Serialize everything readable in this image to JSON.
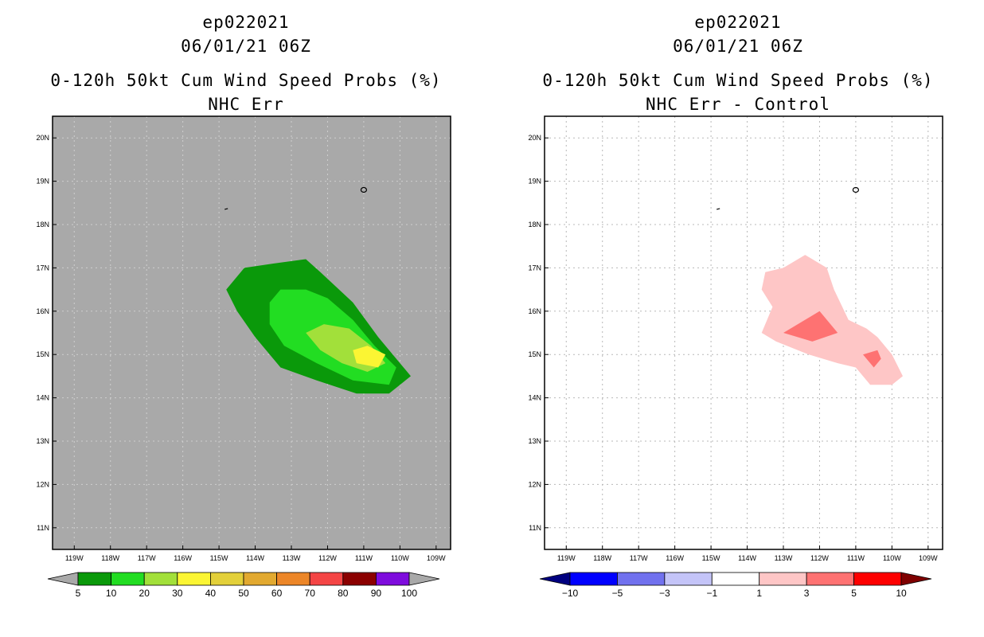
{
  "panels": [
    {
      "title1": "ep022021",
      "title2": "06/01/21 06Z",
      "title3": "0-120h 50kt Cum Wind Speed Probs (%)",
      "title4": "NHC Err"
    },
    {
      "title1": "ep022021",
      "title2": "06/01/21 06Z",
      "title3": "0-120h 50kt Cum Wind Speed Probs (%)",
      "title4": "NHC Err - Control"
    }
  ],
  "colors": {
    "map_background_left": "#a9a9a9",
    "map_background_right": "#ffffff",
    "prob_bins": [
      "#0a990a",
      "#22dd22",
      "#a2e03a",
      "#fbf533",
      "#e3d03a",
      "#e2a930",
      "#ec8628",
      "#f44545",
      "#8b0000",
      "#7e0cdd"
    ],
    "diff_bins": [
      "#000080",
      "#0000ff",
      "#7171ee",
      "#c4c4f8",
      "#ffffff",
      "#fec6c6",
      "#fe7272",
      "#fd0000",
      "#7f0000"
    ]
  },
  "chart_data": [
    {
      "type": "contour-map",
      "title": "0-120h 50kt Cum Wind Speed Probs (%) — NHC Err",
      "lon_range": [
        -119.6,
        -108.6
      ],
      "lat_range": [
        10.5,
        20.5
      ],
      "x_ticks": [
        "119W",
        "118W",
        "117W",
        "116W",
        "115W",
        "114W",
        "113W",
        "112W",
        "111W",
        "110W",
        "109W"
      ],
      "x_tick_values": [
        -119,
        -118,
        -117,
        -116,
        -115,
        -114,
        -113,
        -112,
        -111,
        -110,
        -109
      ],
      "y_ticks": [
        "20N",
        "19N",
        "18N",
        "17N",
        "16N",
        "15N",
        "14N",
        "13N",
        "12N",
        "11N"
      ],
      "y_tick_values": [
        20,
        19,
        18,
        17,
        16,
        15,
        14,
        13,
        12,
        11
      ],
      "colorbar_labels": [
        "5",
        "10",
        "20",
        "30",
        "40",
        "50",
        "60",
        "70",
        "80",
        "90",
        "100"
      ],
      "contours": [
        {
          "level": "5-10",
          "bin": 0,
          "points": [
            [
              -114.8,
              16.5
            ],
            [
              -114.3,
              17.0
            ],
            [
              -113.5,
              17.1
            ],
            [
              -112.6,
              17.2
            ],
            [
              -112.2,
              16.9
            ],
            [
              -111.3,
              16.2
            ],
            [
              -110.6,
              15.4
            ],
            [
              -110.0,
              14.8
            ],
            [
              -109.7,
              14.5
            ],
            [
              -110.3,
              14.1
            ],
            [
              -111.2,
              14.1
            ],
            [
              -112.3,
              14.4
            ],
            [
              -113.3,
              14.7
            ],
            [
              -114.0,
              15.4
            ],
            [
              -114.5,
              16.0
            ]
          ]
        },
        {
          "level": "10-20",
          "bin": 1,
          "points": [
            [
              -113.6,
              16.2
            ],
            [
              -113.3,
              16.5
            ],
            [
              -112.6,
              16.5
            ],
            [
              -112.0,
              16.3
            ],
            [
              -111.3,
              15.8
            ],
            [
              -110.7,
              15.2
            ],
            [
              -110.1,
              14.7
            ],
            [
              -110.3,
              14.3
            ],
            [
              -111.3,
              14.4
            ],
            [
              -112.3,
              14.8
            ],
            [
              -113.2,
              15.2
            ],
            [
              -113.6,
              15.7
            ]
          ]
        },
        {
          "level": "20-30",
          "bin": 2,
          "points": [
            [
              -112.6,
              15.5
            ],
            [
              -112.1,
              15.7
            ],
            [
              -111.4,
              15.6
            ],
            [
              -110.8,
              15.2
            ],
            [
              -110.4,
              14.8
            ],
            [
              -110.9,
              14.6
            ],
            [
              -111.6,
              14.8
            ],
            [
              -112.2,
              15.1
            ]
          ]
        },
        {
          "level": "30-40",
          "bin": 3,
          "points": [
            [
              -111.3,
              15.1
            ],
            [
              -110.9,
              15.2
            ],
            [
              -110.4,
              15.0
            ],
            [
              -110.6,
              14.7
            ],
            [
              -111.2,
              14.8
            ]
          ]
        }
      ],
      "islands": [
        [
          -111.0,
          18.8
        ],
        [
          -114.8,
          18.35
        ]
      ]
    },
    {
      "type": "contour-map",
      "title": "0-120h 50kt Cum Wind Speed Probs (%) — NHC Err - Control",
      "lon_range": [
        -119.6,
        -108.6
      ],
      "lat_range": [
        10.5,
        20.5
      ],
      "x_ticks": [
        "119W",
        "118W",
        "117W",
        "116W",
        "115W",
        "114W",
        "113W",
        "112W",
        "111W",
        "110W",
        "109W"
      ],
      "x_tick_values": [
        -119,
        -118,
        -117,
        -116,
        -115,
        -114,
        -113,
        -112,
        -111,
        -110,
        -109
      ],
      "y_ticks": [
        "20N",
        "19N",
        "18N",
        "17N",
        "16N",
        "15N",
        "14N",
        "13N",
        "12N",
        "11N"
      ],
      "y_tick_values": [
        20,
        19,
        18,
        17,
        16,
        15,
        14,
        13,
        12,
        11
      ],
      "grid": true,
      "colorbar_labels": [
        "-10",
        "-5",
        "-3",
        "-1",
        "1",
        "3",
        "5",
        "10"
      ],
      "contours": [
        {
          "level": "1-3",
          "bin": 5,
          "points": [
            [
              -113.5,
              16.9
            ],
            [
              -113.0,
              17.0
            ],
            [
              -112.4,
              17.3
            ],
            [
              -111.8,
              17.0
            ],
            [
              -111.6,
              16.5
            ],
            [
              -111.2,
              15.8
            ],
            [
              -110.7,
              15.6
            ],
            [
              -110.4,
              15.4
            ],
            [
              -110.0,
              15.0
            ],
            [
              -109.7,
              14.5
            ],
            [
              -110.0,
              14.3
            ],
            [
              -110.6,
              14.3
            ],
            [
              -111.0,
              14.7
            ],
            [
              -111.5,
              14.8
            ],
            [
              -112.3,
              15.0
            ],
            [
              -113.2,
              15.3
            ],
            [
              -113.6,
              15.5
            ],
            [
              -113.3,
              16.1
            ],
            [
              -113.6,
              16.5
            ]
          ]
        },
        {
          "level": "3-5",
          "bin": 6,
          "points": [
            [
              -113.0,
              15.5
            ],
            [
              -112.0,
              16.0
            ],
            [
              -111.5,
              15.5
            ],
            [
              -112.2,
              15.3
            ]
          ]
        },
        {
          "level": "3-5",
          "bin": 6,
          "points": [
            [
              -110.8,
              15.0
            ],
            [
              -110.4,
              15.1
            ],
            [
              -110.3,
              14.9
            ],
            [
              -110.5,
              14.7
            ]
          ]
        }
      ],
      "islands": [
        [
          -111.0,
          18.8
        ],
        [
          -114.8,
          18.35
        ]
      ]
    }
  ]
}
